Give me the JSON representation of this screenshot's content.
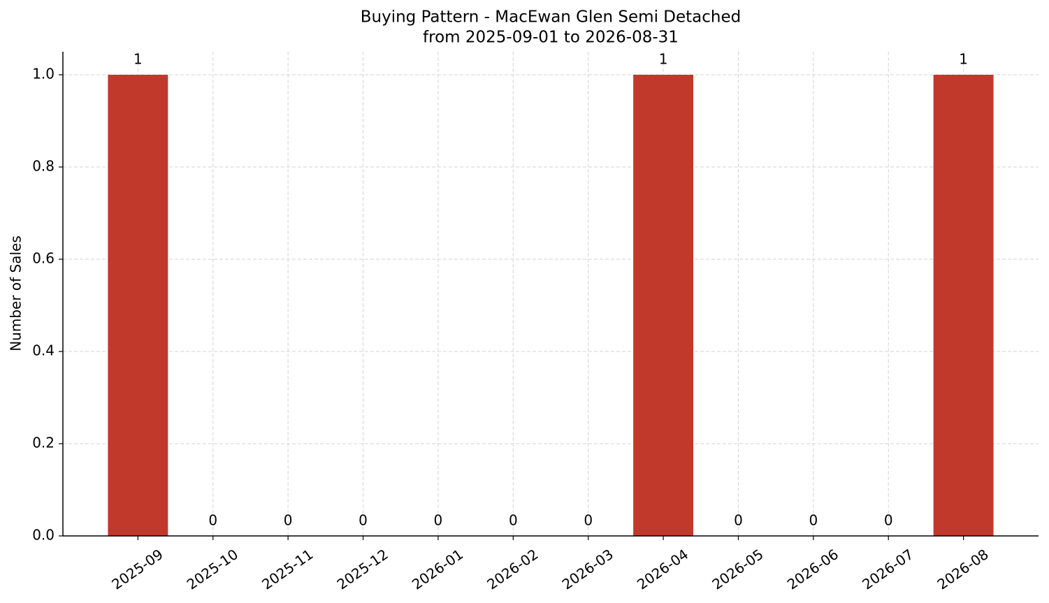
{
  "chart_data": {
    "type": "bar",
    "title": "Buying Pattern - MacEwan Glen Semi Detached",
    "subtitle": "from 2025-09-01 to 2026-08-31",
    "y_label": "Number of Sales",
    "categories": [
      "2025-09",
      "2025-10",
      "2025-11",
      "2025-12",
      "2026-01",
      "2026-02",
      "2026-03",
      "2026-04",
      "2026-05",
      "2026-06",
      "2026-07",
      "2026-08"
    ],
    "values": [
      1,
      0,
      0,
      0,
      0,
      0,
      0,
      1,
      0,
      0,
      0,
      1
    ],
    "color": "#c0392b",
    "ylim": [
      0,
      1.05
    ],
    "yticks": [
      {
        "value": 0,
        "label": "0.0"
      },
      {
        "value": 0.2,
        "label": "0.2"
      },
      {
        "value": 0.4,
        "label": "0.4"
      },
      {
        "value": 0.6,
        "label": "0.6"
      },
      {
        "value": 0.8,
        "label": "0.8"
      },
      {
        "value": 1,
        "label": "1.0"
      }
    ],
    "grid": true
  }
}
